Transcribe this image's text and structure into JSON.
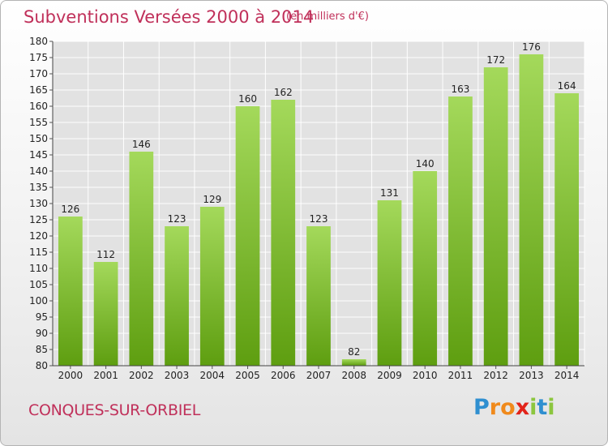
{
  "header": {
    "title": "Subventions Versées 2000 à 2014",
    "subtitle": "(en milliers d'€)"
  },
  "footer": {
    "commune": "CONQUES-SUR-ORBIEL",
    "logo_letters": [
      "P",
      "r",
      "o",
      "x",
      "i",
      "t",
      "i"
    ],
    "logo_colors": [
      "#2f8fd0",
      "#f08a1c",
      "#f08a1c",
      "#e2231a",
      "#8cc63f",
      "#2f8fd0",
      "#8cc63f"
    ]
  },
  "colors": {
    "bar_light": "#a4d95b",
    "bar_dark": "#5e9e10",
    "grid": "#ffffff",
    "plot_bg": "#e2e2e2",
    "text": "#222222",
    "accent": "#c0305a"
  },
  "chart_data": {
    "type": "bar",
    "title": "Subventions Versées 2000 à 2014",
    "subtitle": "(en milliers d'€)",
    "xlabel": "",
    "ylabel": "",
    "categories": [
      "2000",
      "2001",
      "2002",
      "2003",
      "2004",
      "2005",
      "2006",
      "2007",
      "2008",
      "2009",
      "2010",
      "2011",
      "2012",
      "2013",
      "2014"
    ],
    "values": [
      126,
      112,
      146,
      123,
      129,
      160,
      162,
      123,
      82,
      131,
      140,
      163,
      172,
      176,
      164
    ],
    "ylim": [
      80,
      180
    ],
    "yticks": [
      80,
      85,
      90,
      95,
      100,
      105,
      110,
      115,
      120,
      125,
      130,
      135,
      140,
      145,
      150,
      155,
      160,
      165,
      170,
      175,
      180
    ],
    "grid": true,
    "legend": "none"
  }
}
